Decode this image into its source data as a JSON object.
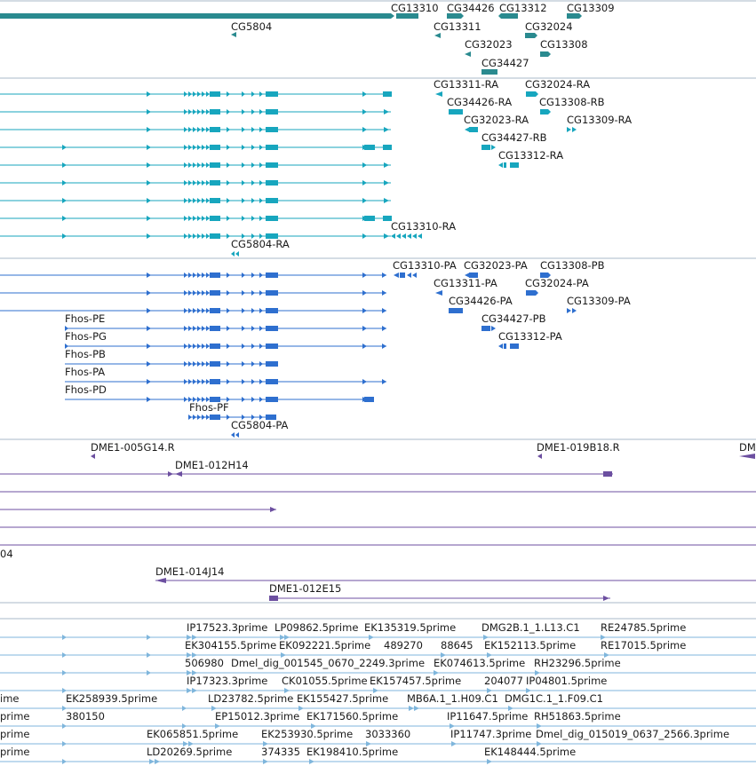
{
  "colors": {
    "gene": "#2a8a8f",
    "transcript": "#17a6be",
    "protein": "#2e6fcf",
    "clone": "#6c4fa0",
    "est": "#7fb6dc",
    "divider": "#aab8c8"
  },
  "tracks": {
    "gene": {
      "labels": [
        "CG13310",
        "CG34426",
        "CG13312",
        "CG13309",
        "CG5804",
        "CG13311",
        "CG32024",
        "CG32023",
        "CG13308",
        "CG34427"
      ]
    },
    "transcript": {
      "labels": [
        "CG13311-RA",
        "CG32024-RA",
        "CG34426-RA",
        "CG13308-RB",
        "CG32023-RA",
        "CG13309-RA",
        "CG34427-RB",
        "CG13312-RA",
        "CG13310-RA",
        "CG5804-RA"
      ]
    },
    "protein": {
      "labels": [
        "CG13310-PA",
        "CG32023-PA",
        "CG13308-PB",
        "CG13311-PA",
        "CG32024-PA",
        "CG34426-PA",
        "CG13309-PA",
        "Fhos-PE",
        "CG34427-PB",
        "Fhos-PG",
        "CG13312-PA",
        "Fhos-PB",
        "Fhos-PA",
        "Fhos-PD",
        "Fhos-PF",
        "CG5804-PA"
      ]
    },
    "clone": {
      "labels": [
        "DME1-005G14.R",
        "DME1-019B18.R",
        "DM",
        "DME1-012H14",
        "04",
        "DME1-014J14",
        "DME1-012E15"
      ]
    },
    "est": {
      "labels": [
        "IP17523.3prime",
        "LP09862.5prime",
        "EK135319.5prime",
        "DMG2B.1_1.L13.C1",
        "RE24785.5prime",
        "EK304155.5prime",
        "EK092221.5prime",
        "489270",
        "88645",
        "EK152113.5prime",
        "RE17015.5prime",
        "506980",
        "Dmel_dig_001545_0670_2249.3prime",
        "EK074613.5prime",
        "RH23296.5prime",
        "IP17323.3prime",
        "CK01055.5prime",
        "EK157457.5prime",
        "204077",
        "IP04801.5prime",
        "ime",
        "EK258939.5prime",
        "LD23782.5prime",
        "EK155427.5prime",
        "MB6A.1_1.H09.C1",
        "DMG1C.1_1.F09.C1",
        "prime",
        "380150",
        "EP15012.3prime",
        "EK171560.5prime",
        "IP11647.5prime",
        "RH51863.5prime",
        "prime",
        "EK065851.5prime",
        "EK253930.5prime",
        "3033360",
        "IP11747.3prime",
        "Dmel_dig_015019_0637_2566.3prime",
        "prime",
        "LD20269.5prime",
        "374335",
        "EK198410.5prime",
        "EK148444.5prime"
      ]
    }
  }
}
